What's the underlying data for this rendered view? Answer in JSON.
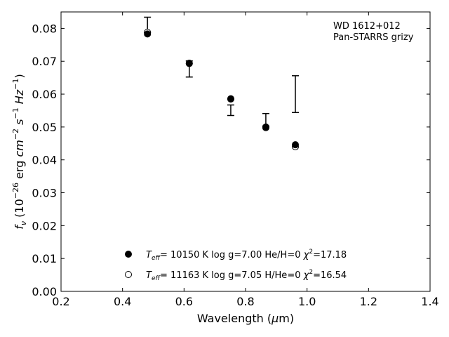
{
  "chart_data": {
    "type": "scatter",
    "annotation": {
      "line1": "WD 1612+012",
      "line2": "Pan-STARRS grizy"
    },
    "xlim": [
      0.2,
      1.4
    ],
    "ylim": [
      0.0,
      0.085
    ],
    "xticks": [
      {
        "v": 0.2,
        "label": "0.2"
      },
      {
        "v": 0.4,
        "label": "0.4"
      },
      {
        "v": 0.6,
        "label": "0.6"
      },
      {
        "v": 0.8,
        "label": "0.8"
      },
      {
        "v": 1.0,
        "label": "1.0"
      },
      {
        "v": 1.2,
        "label": "1.2"
      },
      {
        "v": 1.4,
        "label": "1.4"
      }
    ],
    "yticks": [
      {
        "v": 0.0,
        "label": "0.00"
      },
      {
        "v": 0.01,
        "label": "0.01"
      },
      {
        "v": 0.02,
        "label": "0.02"
      },
      {
        "v": 0.03,
        "label": "0.03"
      },
      {
        "v": 0.04,
        "label": "0.04"
      },
      {
        "v": 0.05,
        "label": "0.05"
      },
      {
        "v": 0.06,
        "label": "0.06"
      },
      {
        "v": 0.07,
        "label": "0.07"
      },
      {
        "v": 0.08,
        "label": "0.08"
      }
    ],
    "observed": {
      "x": [
        0.481,
        0.617,
        0.752,
        0.866,
        0.962
      ],
      "y_low": [
        0.0787,
        0.0652,
        0.0535,
        0.0503,
        0.0544
      ],
      "y_high": [
        0.0834,
        0.0701,
        0.0567,
        0.0541,
        0.0656
      ]
    },
    "series": [
      {
        "name": "Teff= 10150 K  log g=7.00  He/H=0  χ2=17.18",
        "marker": "filled",
        "x": [
          0.481,
          0.617,
          0.752,
          0.866,
          0.962
        ],
        "y": [
          0.0783,
          0.0693,
          0.0586,
          0.05,
          0.0446
        ]
      },
      {
        "name": "Teff= 11163 K  log g=7.05  H/He=0  χ2=16.54",
        "marker": "open",
        "x": [
          0.481,
          0.617,
          0.752,
          0.866,
          0.962
        ],
        "y": [
          0.0788,
          0.0694,
          0.0585,
          0.0498,
          0.044
        ]
      }
    ],
    "legend": {
      "placement": "lower-center",
      "entries": [
        {
          "teff": "10150",
          "logg": "7.00",
          "comp_label": "He/H",
          "comp_val": "0",
          "chi2": "17.18"
        },
        {
          "teff": "11163",
          "logg": "7.05",
          "comp_label": "H/He",
          "comp_val": "0",
          "chi2": "16.54"
        }
      ]
    },
    "grid": false
  }
}
